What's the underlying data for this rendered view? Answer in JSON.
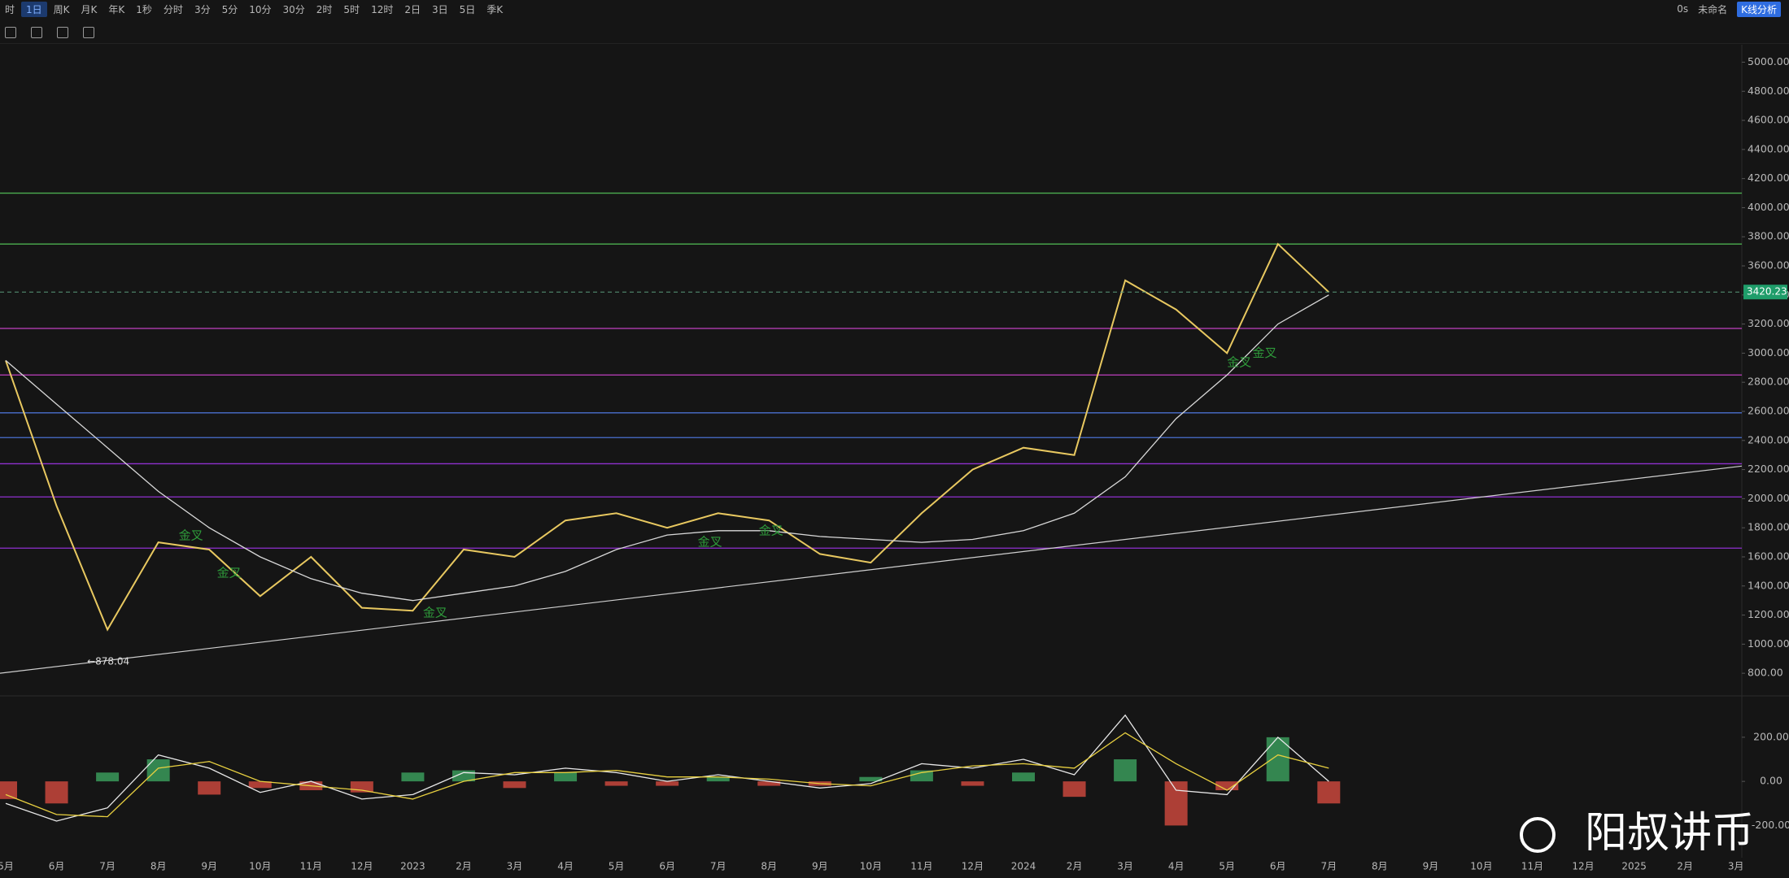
{
  "toolbar": {
    "periods": [
      "时",
      "1日",
      "周K",
      "月K",
      "年K",
      "1秒",
      "分时",
      "3分",
      "5分",
      "10分",
      "30分",
      "2时",
      "5时",
      "12时",
      "2日",
      "3日",
      "5日",
      "季K"
    ],
    "active": 1,
    "right": [
      "0s",
      "未命名",
      "K线分析"
    ]
  },
  "watermark": "阳叔讲币",
  "chart_data": [
    {
      "type": "line",
      "categories": [
        "5月",
        "6月",
        "7月",
        "8月",
        "9月",
        "10月",
        "11月",
        "12月",
        "2023",
        "2月",
        "3月",
        "4月",
        "5月",
        "6月",
        "7月",
        "8月",
        "9月",
        "10月",
        "11月",
        "12月",
        "2024",
        "2月",
        "3月",
        "4月",
        "5月",
        "6月",
        "7月",
        "8月",
        "9月",
        "10月",
        "11月",
        "12月",
        "2025",
        "2月",
        "3月"
      ],
      "series": [
        {
          "color": "#e8c860",
          "values": [
            2950,
            1950,
            1100,
            1700,
            1650,
            1330,
            1600,
            1250,
            1230,
            1650,
            1600,
            1850,
            1900,
            1800,
            1900,
            1850,
            1620,
            1560,
            1900,
            2200,
            2350,
            2300,
            3500,
            3300,
            3000,
            3750,
            3420,
            null,
            null,
            null,
            null,
            null,
            null,
            null,
            null
          ]
        },
        {
          "color": "#d8d8d8",
          "values": [
            2950,
            2650,
            2350,
            2050,
            1800,
            1600,
            1450,
            1350,
            1300,
            1350,
            1400,
            1500,
            1650,
            1750,
            1780,
            1780,
            1740,
            1720,
            1700,
            1720,
            1780,
            1900,
            2150,
            2550,
            2850,
            3200,
            3400,
            null,
            null,
            null,
            null,
            null,
            null,
            null,
            null
          ]
        }
      ],
      "trendline": {
        "color": "#d0d0d0",
        "values": [
          800,
          2224
        ]
      },
      "levels": [
        {
          "value": 4100,
          "color": "#4caf50"
        },
        {
          "value": 3750,
          "color": "#4caf50"
        },
        {
          "value": 3170,
          "color": "#c040c0"
        },
        {
          "value": 2850,
          "color": "#c040c0"
        },
        {
          "value": 2590,
          "color": "#4a6fd0"
        },
        {
          "value": 2420,
          "color": "#4a6fd0"
        },
        {
          "value": 2240,
          "color": "#9030d0"
        },
        {
          "value": 2012,
          "color": "#9030d0"
        },
        {
          "value": 1660,
          "color": "#9030d0"
        }
      ],
      "last_price": 3420.23,
      "low": {
        "value": 878.04,
        "label": "←878.04",
        "x": 1.6
      },
      "annotations": [
        {
          "text": "金叉",
          "x": 3.4,
          "y": 1746
        },
        {
          "text": "金叉",
          "x": 4.15,
          "y": 1488
        },
        {
          "text": "金叉",
          "x": 8.2,
          "y": 1214
        },
        {
          "text": "金叉",
          "x": 13.6,
          "y": 1700
        },
        {
          "text": "金叉",
          "x": 14.8,
          "y": 1778
        },
        {
          "text": "金叉",
          "x": 24.0,
          "y": 2935
        },
        {
          "text": "金叉",
          "x": 24.5,
          "y": 3000
        }
      ],
      "ylim": [
        650,
        5120
      ],
      "yticks": [
        {
          "value": 800,
          "label": "800.00"
        },
        {
          "value": 1000,
          "label": "1000.00"
        },
        {
          "value": 1200,
          "label": "1200.00"
        },
        {
          "value": 1400,
          "label": "1400.00"
        },
        {
          "value": 1600,
          "label": "1600.00"
        },
        {
          "value": 1800,
          "label": "1800.00"
        },
        {
          "value": 2000,
          "label": "2000.00"
        },
        {
          "value": 2200,
          "label": "2200.00"
        },
        {
          "value": 2400,
          "label": "2400.00"
        },
        {
          "value": 2600,
          "label": "2600.00"
        },
        {
          "value": 2800,
          "label": "2800.00"
        },
        {
          "value": 3000,
          "label": "3000.00"
        },
        {
          "value": 3200,
          "label": "3200.00"
        },
        {
          "value": 3400,
          "label": "3400.00"
        },
        {
          "value": 3600,
          "label": "3600.00"
        },
        {
          "value": 3800,
          "label": "3800.00"
        },
        {
          "value": 4000,
          "label": "4000.00"
        },
        {
          "value": 4200,
          "label": "4200.00"
        },
        {
          "value": 4400,
          "label": "4400.00"
        },
        {
          "value": 4600,
          "label": "4600.00"
        },
        {
          "value": 4800,
          "label": "4800.00"
        },
        {
          "value": 5000,
          "label": "5000.00"
        }
      ]
    },
    {
      "type": "macd",
      "values": [
        -80,
        -100,
        40,
        100,
        -60,
        -30,
        -40,
        -50,
        40,
        50,
        -30,
        40,
        -20,
        -20,
        20,
        -20,
        -20,
        20,
        50,
        -20,
        40,
        -70,
        100,
        -200,
        -40,
        200,
        -100,
        null,
        null,
        null,
        null,
        null,
        null,
        null,
        null
      ],
      "up_color": "#3a9a5a",
      "down_color": "#c8463c",
      "series": [
        {
          "color": "#e8e8e8",
          "values": [
            -100,
            -180,
            -120,
            120,
            60,
            -50,
            0,
            -80,
            -60,
            40,
            30,
            60,
            40,
            0,
            30,
            0,
            -30,
            -10,
            80,
            60,
            100,
            30,
            300,
            -40,
            -60,
            200,
            0,
            null,
            null,
            null,
            null,
            null,
            null,
            null,
            null
          ]
        },
        {
          "color": "#e8d040",
          "values": [
            -60,
            -150,
            -160,
            60,
            90,
            0,
            -20,
            -40,
            -80,
            0,
            40,
            40,
            50,
            20,
            20,
            10,
            -10,
            -20,
            40,
            70,
            80,
            60,
            220,
            80,
            -40,
            120,
            60,
            null,
            null,
            null,
            null,
            null,
            null,
            null,
            null
          ]
        }
      ],
      "ylim": [
        -320,
        380
      ],
      "yticks": [
        {
          "value": 200,
          "label": "200.00"
        },
        {
          "value": 0,
          "label": "0.00"
        },
        {
          "value": -200,
          "label": "-200.00"
        }
      ]
    }
  ]
}
